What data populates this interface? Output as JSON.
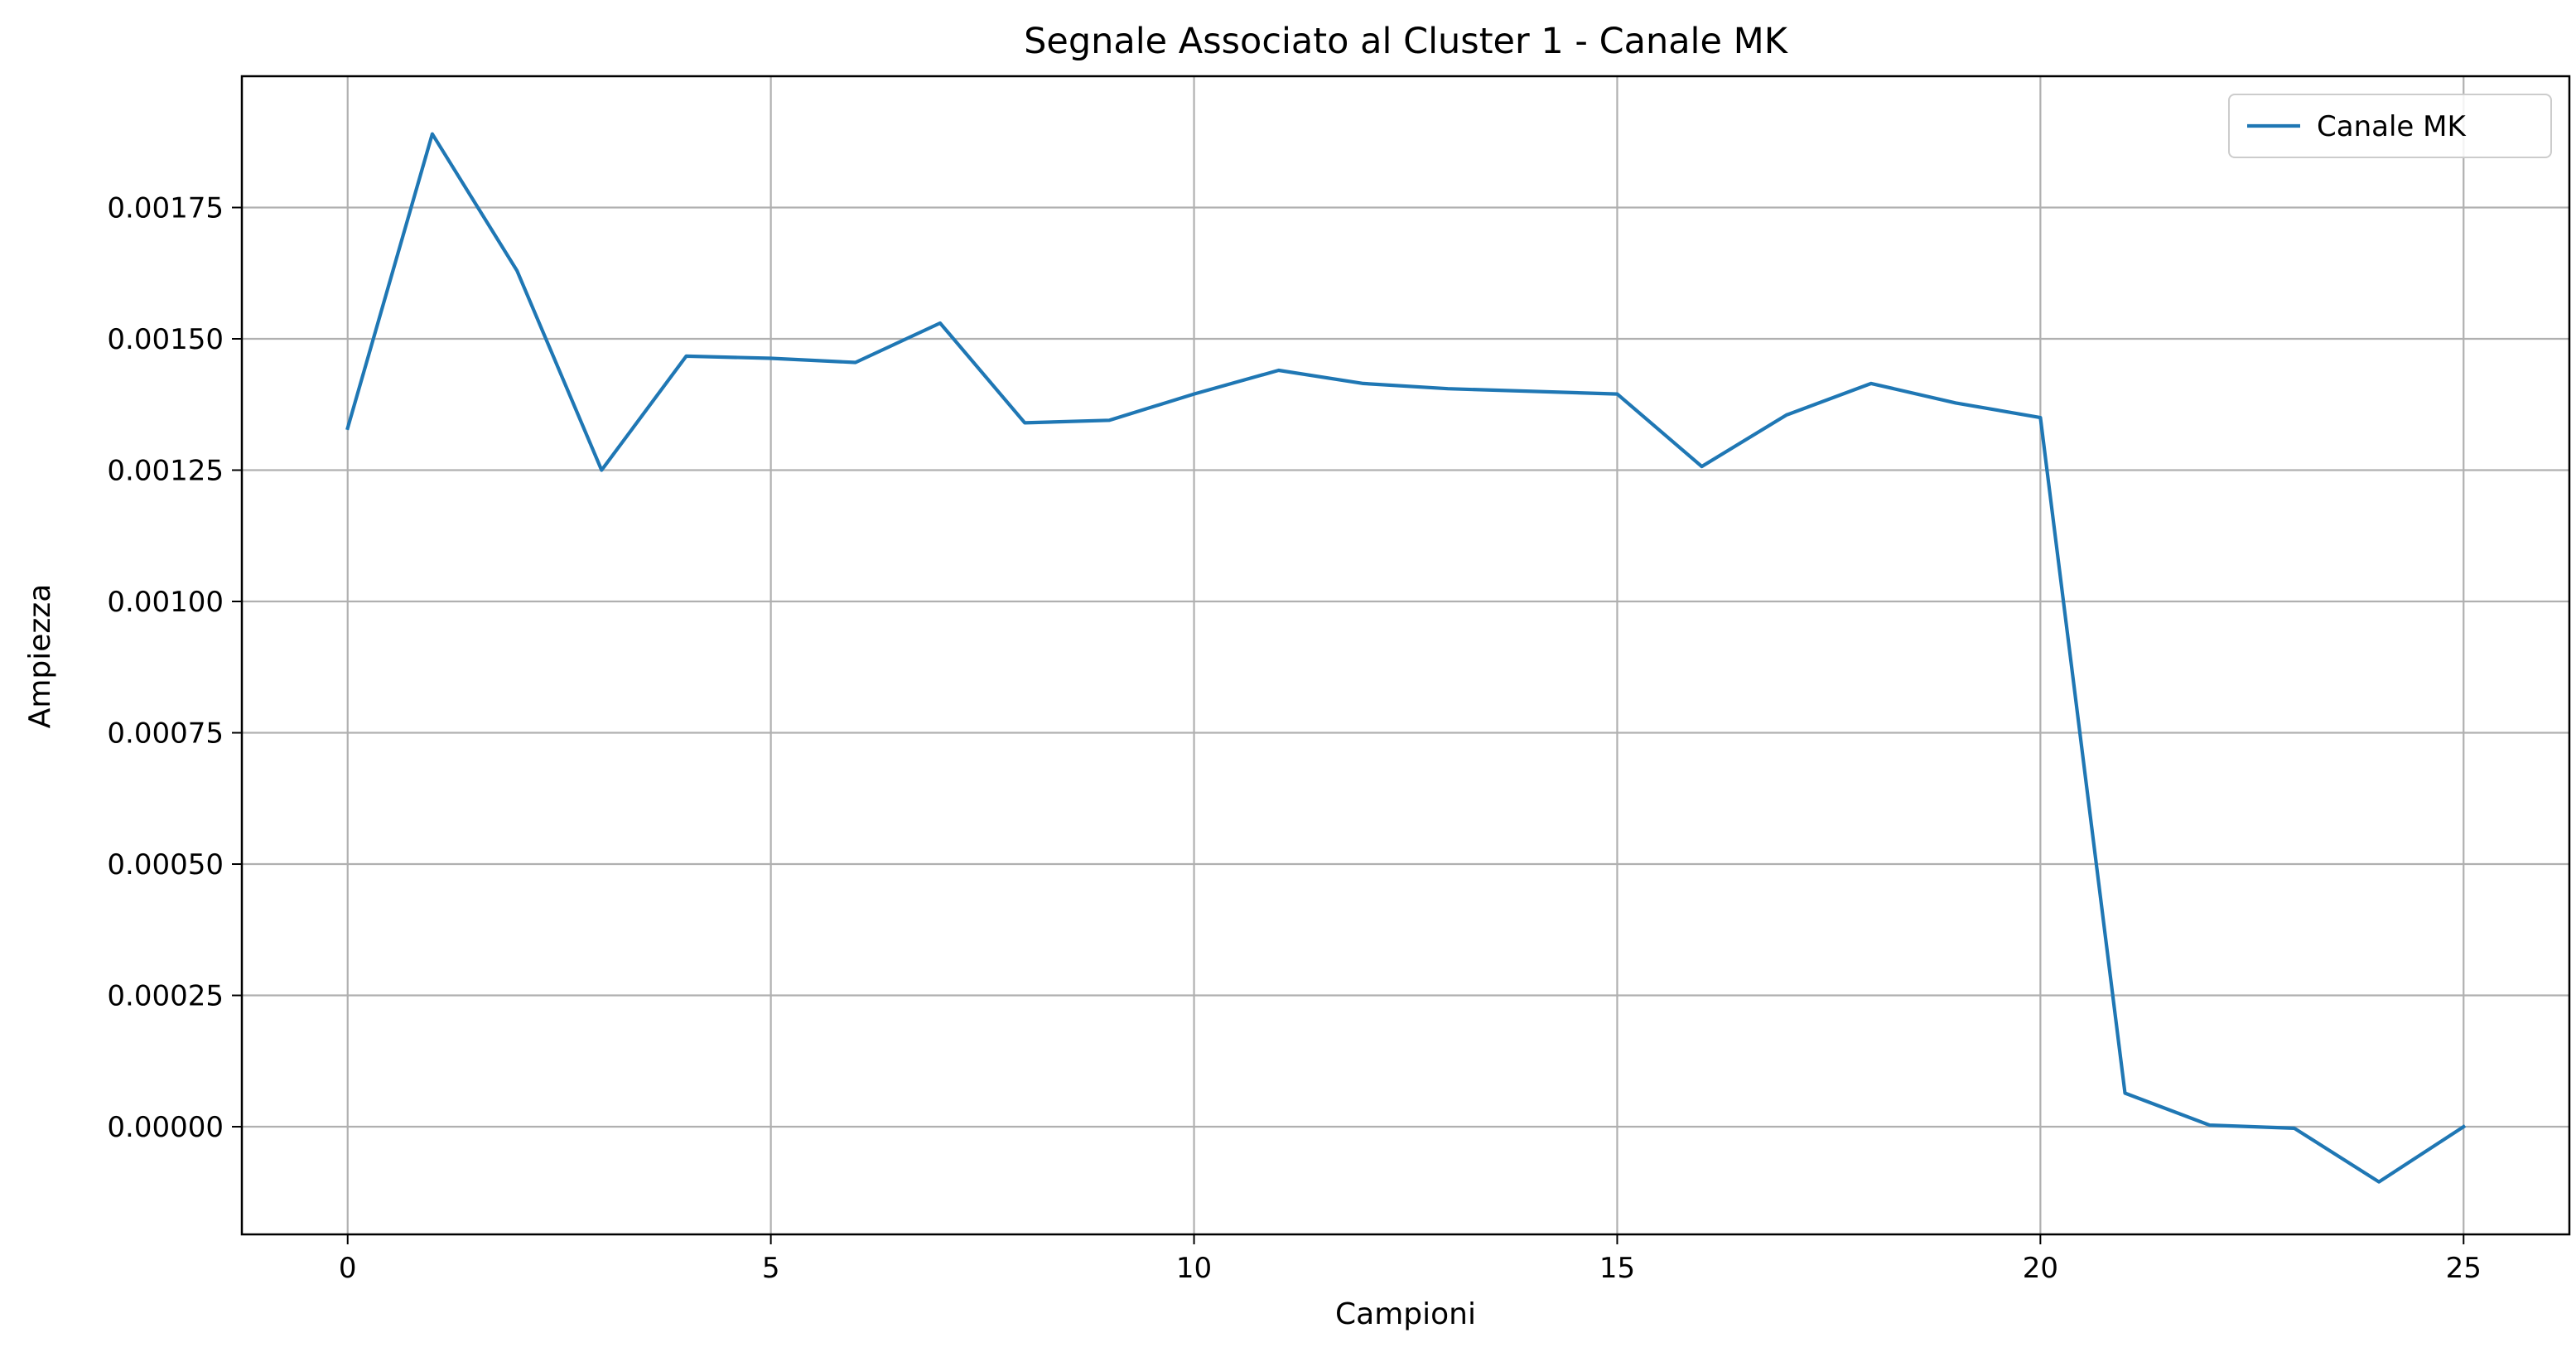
{
  "chart_data": {
    "type": "line",
    "title": "Segnale Associato al Cluster 1 - Canale MK",
    "xlabel": "Campioni",
    "ylabel": "Ampiezza",
    "xlim": [
      -1.25,
      26.25
    ],
    "ylim": [
      -0.000205,
      0.002
    ],
    "x_ticks": [
      0,
      5,
      10,
      15,
      20,
      25
    ],
    "x_tick_labels": [
      "0",
      "5",
      "10",
      "15",
      "20",
      "25"
    ],
    "y_ticks": [
      0.0,
      0.00025,
      0.0005,
      0.00075,
      0.001,
      0.00125,
      0.0015,
      0.00175
    ],
    "y_tick_labels": [
      "0.00000",
      "0.00025",
      "0.00050",
      "0.00075",
      "0.00100",
      "0.00125",
      "0.00150",
      "0.00175"
    ],
    "grid": true,
    "legend_position": "top-right",
    "series": [
      {
        "name": "Canale MK",
        "color": "#1f77b4",
        "x": [
          0,
          1,
          2,
          3,
          4,
          5,
          6,
          7,
          8,
          9,
          10,
          11,
          12,
          13,
          14,
          15,
          16,
          17,
          18,
          19,
          20,
          21,
          22,
          23,
          24,
          25
        ],
        "y": [
          0.00133,
          0.00189,
          0.00163,
          0.00125,
          0.001467,
          0.001463,
          0.001455,
          0.00153,
          0.00134,
          0.001345,
          0.001395,
          0.00144,
          0.001415,
          0.001405,
          0.0014,
          0.001395,
          0.001257,
          0.001355,
          0.001415,
          0.001378,
          0.00135,
          6.4e-05,
          3e-06,
          -3e-06,
          -0.000105,
          0.0
        ]
      }
    ]
  }
}
